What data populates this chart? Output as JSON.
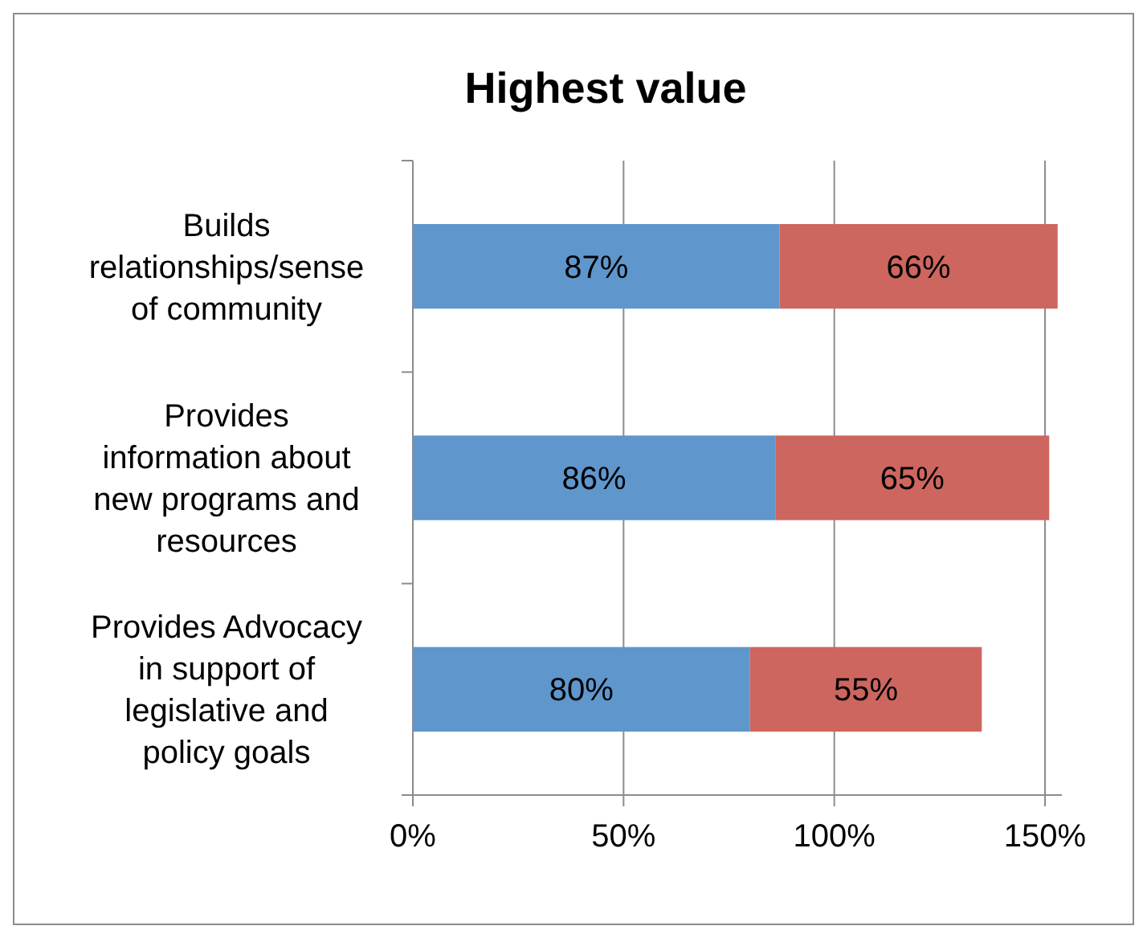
{
  "chart_data": {
    "type": "bar",
    "title": "Highest value",
    "orientation": "horizontal",
    "stacked": true,
    "categories": [
      "Builds relationships/sense of community",
      "Provides information about new programs and resources",
      "Provides Advocacy in support of legislative and policy goals"
    ],
    "series": [
      {
        "color": "#5f96cc",
        "values": [
          87,
          86,
          80
        ],
        "value_labels": [
          "87%",
          "86%",
          "80%"
        ]
      },
      {
        "color": "#cd665f",
        "values": [
          66,
          65,
          55
        ],
        "value_labels": [
          "66%",
          "65%",
          "55%"
        ]
      }
    ],
    "xlim": [
      0,
      154
    ],
    "xticks": [
      {
        "value": 0,
        "label": "0%"
      },
      {
        "value": 50,
        "label": "50%"
      },
      {
        "value": 100,
        "label": "100%"
      },
      {
        "value": 150,
        "label": "150%"
      }
    ],
    "grid": "x"
  }
}
